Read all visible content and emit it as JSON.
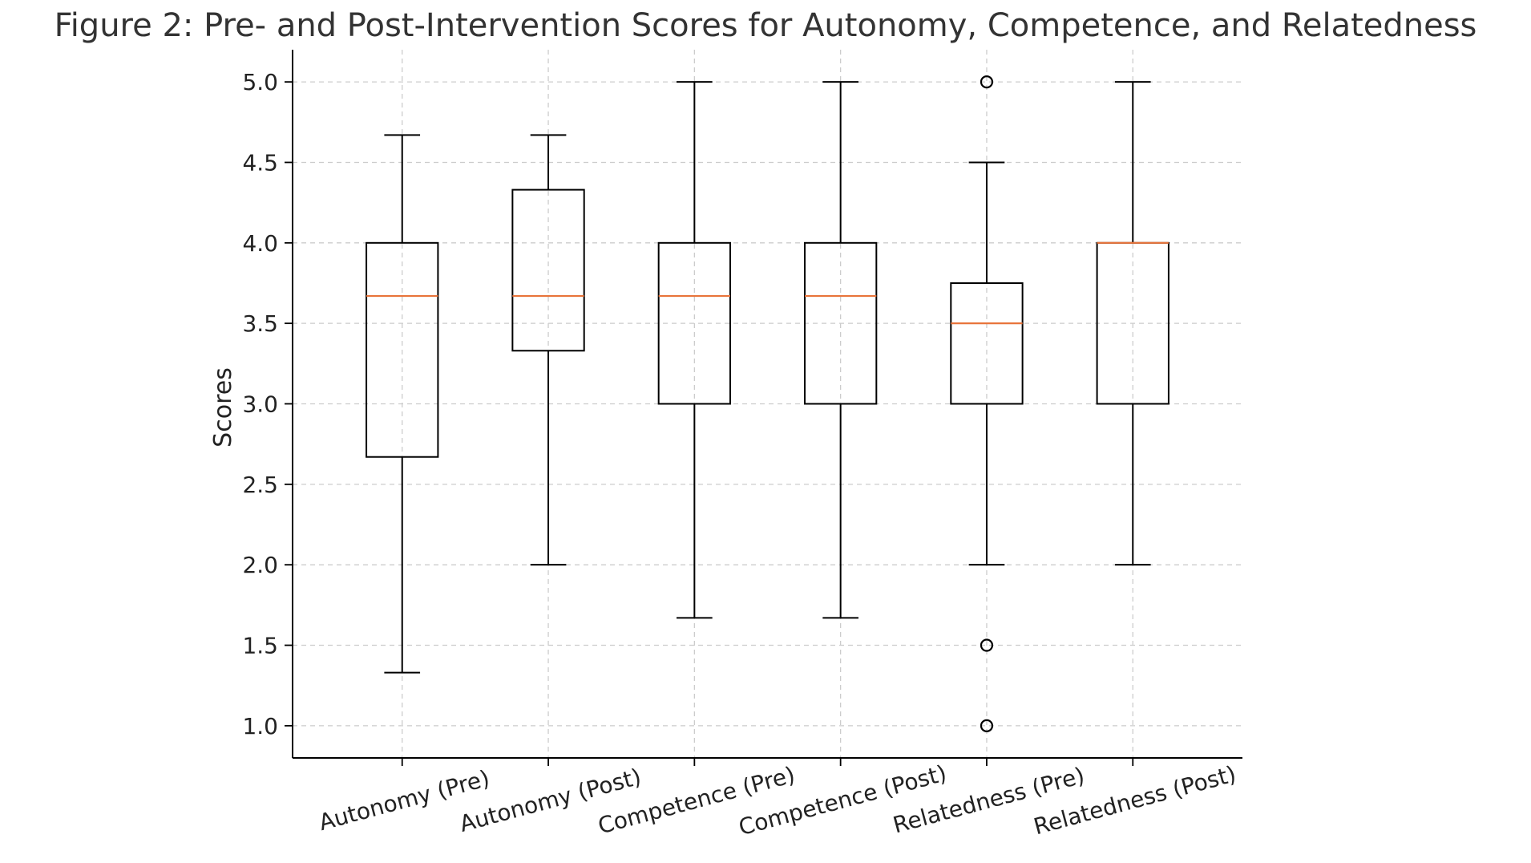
{
  "chart_data": {
    "type": "box",
    "title": "Figure 2: Pre- and Post-Intervention Scores for Autonomy, Competence, and Relatedness",
    "xlabel": "",
    "ylabel": "Scores",
    "ylim": [
      0.8,
      5.2
    ],
    "yticks": [
      "1.0",
      "1.5",
      "2.0",
      "2.5",
      "3.0",
      "3.5",
      "4.0",
      "4.5",
      "5.0"
    ],
    "grid": true,
    "categories": [
      "Autonomy (Pre)",
      "Autonomy (Post)",
      "Competence (Pre)",
      "Competence (Post)",
      "Relatedness (Pre)",
      "Relatedness (Post)"
    ],
    "boxes": [
      {
        "whisker_low": 1.33,
        "q1": 2.67,
        "median": 3.67,
        "q3": 4.0,
        "whisker_high": 4.67,
        "outliers": []
      },
      {
        "whisker_low": 2.0,
        "q1": 3.33,
        "median": 3.67,
        "q3": 4.33,
        "whisker_high": 4.67,
        "outliers": []
      },
      {
        "whisker_low": 1.67,
        "q1": 3.0,
        "median": 3.67,
        "q3": 4.0,
        "whisker_high": 5.0,
        "outliers": []
      },
      {
        "whisker_low": 1.67,
        "q1": 3.0,
        "median": 3.67,
        "q3": 4.0,
        "whisker_high": 5.0,
        "outliers": []
      },
      {
        "whisker_low": 2.0,
        "q1": 3.0,
        "median": 3.5,
        "q3": 3.75,
        "whisker_high": 4.5,
        "outliers": [
          1.0,
          1.5,
          5.0
        ]
      },
      {
        "whisker_low": 2.0,
        "q1": 3.0,
        "median": 4.0,
        "q3": 4.0,
        "whisker_high": 5.0,
        "outliers": []
      }
    ],
    "colors": {
      "box": "#000000",
      "median": "#e8743b",
      "grid": "#cccccc",
      "text": "#222222",
      "title": "#333333"
    }
  }
}
